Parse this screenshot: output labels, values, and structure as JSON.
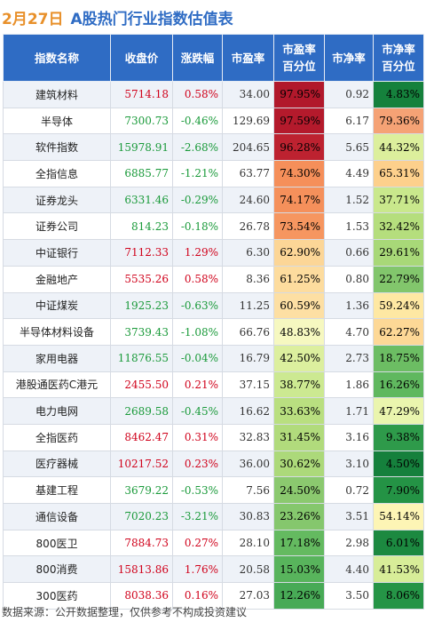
{
  "header": {
    "date": "2月27日",
    "title": "A股热门行业指数估值表"
  },
  "columns": [
    "指数名称",
    "收盘价",
    "涨跌幅",
    "市盈率",
    "市盈率\n百分位",
    "市净率",
    "市净率\n百分位"
  ],
  "rows": [
    {
      "name": "建筑材料",
      "close": "5714.18",
      "change": "0.58%",
      "dir": "up",
      "pe": "34.00",
      "pe_pct": "97.95%",
      "pe_color": "#b1182b",
      "pb": "0.92",
      "pb_pct": "4.83%",
      "pb_color": "#15813c"
    },
    {
      "name": "半导体",
      "close": "7300.73",
      "change": "-0.46%",
      "dir": "down",
      "pe": "129.69",
      "pe_pct": "97.59%",
      "pe_color": "#b41a2c",
      "pb": "6.17",
      "pb_pct": "79.36%",
      "pb_color": "#f5a275"
    },
    {
      "name": "软件指数",
      "close": "15978.91",
      "change": "-2.68%",
      "dir": "down",
      "pe": "204.65",
      "pe_pct": "96.28%",
      "pe_color": "#bd2230",
      "pb": "5.65",
      "pb_pct": "44.32%",
      "pb_color": "#dcef9c"
    },
    {
      "name": "全指信息",
      "close": "6885.77",
      "change": "-1.21%",
      "dir": "down",
      "pe": "63.77",
      "pe_pct": "74.30%",
      "pe_color": "#f58f5a",
      "pb": "4.49",
      "pb_pct": "65.31%",
      "pb_color": "#fdd08c"
    },
    {
      "name": "证券龙头",
      "close": "6331.46",
      "change": "-0.29%",
      "dir": "down",
      "pe": "24.60",
      "pe_pct": "74.17%",
      "pe_color": "#f5905b",
      "pb": "1.52",
      "pb_pct": "37.71%",
      "pb_color": "#c9e88c"
    },
    {
      "name": "证券公司",
      "close": "814.23",
      "change": "-0.18%",
      "dir": "down",
      "pe": "26.78",
      "pe_pct": "73.54%",
      "pe_color": "#f69660",
      "pb": "1.53",
      "pb_pct": "32.42%",
      "pb_color": "#b5de7d"
    },
    {
      "name": "中证银行",
      "close": "7112.33",
      "change": "1.29%",
      "dir": "up",
      "pe": "6.30",
      "pe_pct": "62.90%",
      "pe_color": "#fcd697",
      "pb": "0.66",
      "pb_pct": "29.61%",
      "pb_color": "#a8d878"
    },
    {
      "name": "金融地产",
      "close": "5535.26",
      "change": "0.58%",
      "dir": "up",
      "pe": "8.36",
      "pe_pct": "61.25%",
      "pe_color": "#fddc9e",
      "pb": "0.80",
      "pb_pct": "22.79%",
      "pb_color": "#82c66c"
    },
    {
      "name": "中证煤炭",
      "close": "1925.23",
      "change": "-0.63%",
      "dir": "down",
      "pe": "11.25",
      "pe_pct": "60.59%",
      "pe_color": "#fddfa3",
      "pb": "1.36",
      "pb_pct": "59.24%",
      "pb_color": "#fee8a3"
    },
    {
      "name": "半导体材料设备",
      "close": "3739.43",
      "change": "-1.08%",
      "dir": "down",
      "pe": "66.76",
      "pe_pct": "48.83%",
      "pe_color": "#f6f8c0",
      "pb": "4.70",
      "pb_pct": "62.27%",
      "pb_color": "#fdd896"
    },
    {
      "name": "家用电器",
      "close": "11876.55",
      "change": "-0.04%",
      "dir": "down",
      "pe": "16.79",
      "pe_pct": "42.50%",
      "pe_color": "#dcef9e",
      "pb": "2.73",
      "pb_pct": "18.75%",
      "pb_color": "#6cbd63"
    },
    {
      "name": "港股通医药C港元",
      "close": "2455.50",
      "change": "0.21%",
      "dir": "up",
      "pe": "37.15",
      "pe_pct": "38.77%",
      "pe_color": "#cce991",
      "pb": "1.86",
      "pb_pct": "16.26%",
      "pb_color": "#60b85f"
    },
    {
      "name": "电力电网",
      "close": "2689.58",
      "change": "-0.45%",
      "dir": "down",
      "pe": "16.62",
      "pe_pct": "33.63%",
      "pe_color": "#b9df80",
      "pb": "1.71",
      "pb_pct": "47.29%",
      "pb_color": "#eaf5ae"
    },
    {
      "name": "全指医药",
      "close": "8462.47",
      "change": "0.31%",
      "dir": "up",
      "pe": "32.83",
      "pe_pct": "31.45%",
      "pe_color": "#b1db7c",
      "pb": "3.16",
      "pb_pct": "9.38%",
      "pb_color": "#2e9a4a"
    },
    {
      "name": "医疗器械",
      "close": "10217.52",
      "change": "0.23%",
      "dir": "up",
      "pe": "36.00",
      "pe_pct": "30.62%",
      "pe_color": "#acd97a",
      "pb": "3.10",
      "pb_pct": "4.50%",
      "pb_color": "#15803c"
    },
    {
      "name": "基建工程",
      "close": "3679.22",
      "change": "-0.53%",
      "dir": "down",
      "pe": "7.56",
      "pe_pct": "24.50%",
      "pe_color": "#8bc96f",
      "pb": "0.72",
      "pb_pct": "7.90%",
      "pb_color": "#249345"
    },
    {
      "name": "通信设备",
      "close": "7020.23",
      "change": "-3.21%",
      "dir": "down",
      "pe": "30.83",
      "pe_pct": "23.26%",
      "pe_color": "#85c76d",
      "pb": "3.51",
      "pb_pct": "54.14%",
      "pb_color": "#fdf5b5"
    },
    {
      "name": "800医卫",
      "close": "7884.73",
      "change": "0.27%",
      "dir": "up",
      "pe": "28.10",
      "pe_pct": "17.18%",
      "pe_color": "#64ba60",
      "pb": "2.98",
      "pb_pct": "6.01%",
      "pb_color": "#1c8940"
    },
    {
      "name": "800消费",
      "close": "15813.86",
      "change": "1.76%",
      "dir": "up",
      "pe": "20.58",
      "pe_pct": "15.03%",
      "pe_color": "#58b45c",
      "pb": "4.40",
      "pb_pct": "41.53%",
      "pb_color": "#d7ed98"
    },
    {
      "name": "300医药",
      "close": "8038.36",
      "change": "0.16%",
      "dir": "up",
      "pe": "27.03",
      "pe_pct": "12.26%",
      "pe_color": "#48aa56",
      "pb": "3.50",
      "pb_pct": "8.06%",
      "pb_color": "#259446"
    }
  ],
  "footer": "数据来源：公开数据整理，仅供参考不构成投资建议"
}
